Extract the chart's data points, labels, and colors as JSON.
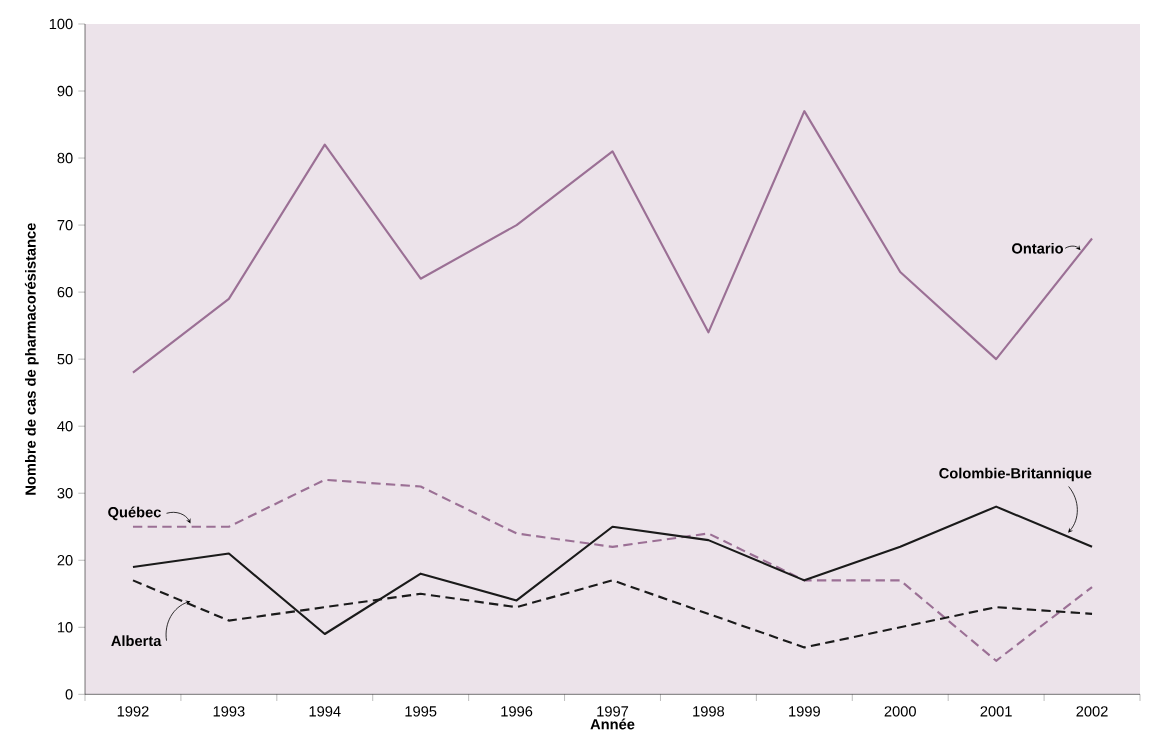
{
  "chart_data": {
    "type": "line",
    "xlabel": "Année",
    "ylabel": "Nombre de cas de pharmacorésistance",
    "categories": [
      "1992",
      "1993",
      "1994",
      "1995",
      "1996",
      "1997",
      "1998",
      "1999",
      "2000",
      "2001",
      "2002"
    ],
    "series": [
      {
        "name": "Ontario",
        "color": "#9b7095",
        "line_style": "solid",
        "values": [
          48,
          59,
          82,
          62,
          70,
          81,
          54,
          87,
          63,
          50,
          68
        ]
      },
      {
        "name": "Québec",
        "color": "#9b7095",
        "line_style": "dashed",
        "values": [
          25,
          25,
          32,
          31,
          24,
          22,
          24,
          17,
          17,
          5,
          16
        ]
      },
      {
        "name": "Colombie-Britannique",
        "color": "#1a1a1a",
        "line_style": "solid",
        "values": [
          19,
          21,
          9,
          18,
          14,
          25,
          23,
          17,
          22,
          28,
          22
        ]
      },
      {
        "name": "Alberta",
        "color": "#1a1a1a",
        "line_style": "dashed",
        "values": [
          17,
          11,
          13,
          15,
          13,
          17,
          12,
          7,
          10,
          13,
          12
        ]
      }
    ],
    "ylim": [
      0,
      100
    ],
    "yticks": [
      0,
      10,
      20,
      30,
      40,
      50,
      60,
      70,
      80,
      90,
      100
    ],
    "grid": false,
    "marker": "none"
  }
}
